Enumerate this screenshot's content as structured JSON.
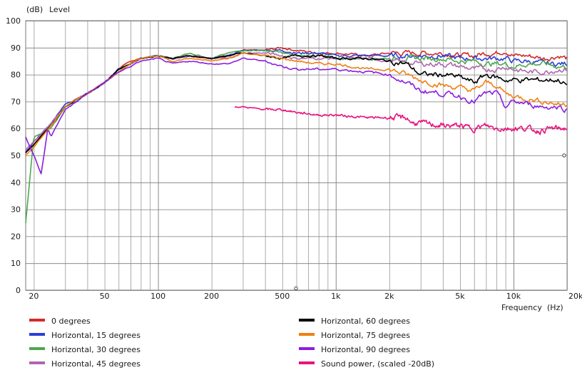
{
  "chart_data": {
    "type": "line",
    "y_unit": "(dB)",
    "ylabel": "Level",
    "xlabel": "Frequency",
    "x_unit": "(Hz)",
    "x_scale": "log",
    "xlim": [
      18,
      20000
    ],
    "ylim": [
      0,
      100
    ],
    "grid": true,
    "legend_position": "bottom",
    "y_ticks": [
      0,
      10,
      20,
      30,
      40,
      50,
      60,
      70,
      80,
      90,
      100
    ],
    "x_ticks": [
      {
        "value": 20,
        "label": "20"
      },
      {
        "value": 50,
        "label": "50"
      },
      {
        "value": 100,
        "label": "100"
      },
      {
        "value": 200,
        "label": "200"
      },
      {
        "value": 500,
        "label": "500"
      },
      {
        "value": 1000,
        "label": "1k"
      },
      {
        "value": 2000,
        "label": "2k"
      },
      {
        "value": 5000,
        "label": "5k"
      },
      {
        "value": 10000,
        "label": "10k"
      },
      {
        "value": 20000,
        "label": "20k"
      }
    ],
    "series": [
      {
        "name": "0 degrees",
        "color": "#d42a2a",
        "x": [
          18,
          20,
          25,
          30,
          35,
          40,
          50,
          60,
          70,
          80,
          100,
          120,
          150,
          200,
          250,
          300,
          400,
          500,
          600,
          800,
          1000,
          1500,
          2000,
          3000,
          4000,
          5000,
          6000,
          7000,
          8000,
          9000,
          10000,
          12000,
          15000,
          18000,
          20000
        ],
        "y": [
          51,
          54,
          62,
          68,
          71,
          73,
          77,
          82,
          85,
          86,
          87,
          86,
          87,
          86,
          87,
          89,
          89,
          90,
          89,
          88,
          88,
          87,
          88,
          88,
          88,
          87,
          87,
          88,
          88,
          89,
          87,
          87,
          86,
          87,
          86
        ]
      },
      {
        "name": "Horizontal, 15 degrees",
        "color": "#2b3fd6",
        "x": [
          18,
          20,
          25,
          30,
          35,
          40,
          50,
          60,
          70,
          80,
          100,
          120,
          150,
          200,
          250,
          300,
          400,
          500,
          600,
          800,
          1000,
          1500,
          2000,
          3000,
          4000,
          5000,
          6000,
          7000,
          8000,
          9000,
          10000,
          12000,
          15000,
          18000,
          20000
        ],
        "y": [
          51,
          55,
          62,
          69,
          71,
          73,
          77,
          82,
          84,
          86,
          87,
          86,
          87,
          86,
          87,
          89,
          89,
          89,
          88,
          88,
          87,
          87,
          87,
          87,
          87,
          86,
          86,
          86,
          86,
          86,
          85,
          85,
          84,
          84,
          84
        ]
      },
      {
        "name": "Horizontal, 30 degrees",
        "color": "#4ca84c",
        "x": [
          18,
          20,
          22,
          25,
          30,
          35,
          40,
          50,
          60,
          70,
          80,
          100,
          120,
          150,
          200,
          250,
          300,
          400,
          500,
          600,
          800,
          1000,
          1500,
          2000,
          3000,
          4000,
          5000,
          6000,
          7000,
          8000,
          9000,
          10000,
          12000,
          15000,
          18000,
          20000
        ],
        "y": [
          25,
          57,
          58,
          60,
          68,
          70,
          73,
          77,
          82,
          84,
          86,
          87,
          86,
          88,
          86,
          88,
          89,
          89,
          88,
          87,
          87,
          86,
          86,
          86,
          86,
          86,
          85,
          85,
          84,
          84,
          84,
          83,
          84,
          84,
          83,
          83
        ]
      },
      {
        "name": "Horizontal, 45 degrees",
        "color": "#b066b0",
        "x": [
          18,
          20,
          25,
          30,
          35,
          40,
          50,
          60,
          70,
          80,
          100,
          120,
          150,
          200,
          250,
          300,
          400,
          500,
          600,
          800,
          1000,
          1500,
          2000,
          3000,
          4000,
          5000,
          6000,
          7000,
          8000,
          9000,
          10000,
          12000,
          15000,
          18000,
          20000
        ],
        "y": [
          52,
          55,
          62,
          68,
          71,
          73,
          77,
          81,
          84,
          86,
          87,
          86,
          87,
          86,
          86,
          88,
          88,
          87,
          86,
          86,
          86,
          86,
          85,
          84,
          84,
          83,
          82,
          82,
          82,
          83,
          82,
          81,
          81,
          82,
          82
        ]
      },
      {
        "name": "Horizontal, 60 degrees",
        "color": "#000000",
        "x": [
          18,
          20,
          25,
          30,
          35,
          40,
          50,
          60,
          70,
          80,
          100,
          120,
          150,
          200,
          250,
          300,
          400,
          500,
          600,
          800,
          1000,
          1500,
          2000,
          2500,
          3000,
          4000,
          5000,
          6000,
          7000,
          8000,
          9000,
          10000,
          12000,
          15000,
          18000,
          20000
        ],
        "y": [
          51,
          54,
          61,
          68,
          71,
          73,
          77,
          82,
          84,
          86,
          87,
          86,
          87,
          86,
          87,
          88,
          87,
          86,
          87,
          87,
          86,
          86,
          85,
          84,
          80,
          80,
          79,
          77,
          80,
          79,
          78,
          78,
          78,
          78,
          78,
          76
        ]
      },
      {
        "name": "Horizontal, 75 degrees",
        "color": "#f07f12",
        "x": [
          18,
          20,
          25,
          30,
          35,
          40,
          50,
          60,
          70,
          80,
          100,
          120,
          150,
          200,
          250,
          300,
          400,
          500,
          600,
          800,
          1000,
          1500,
          2000,
          2500,
          3000,
          4000,
          5000,
          6000,
          7000,
          8000,
          9000,
          10000,
          12000,
          15000,
          18000,
          20000
        ],
        "y": [
          50,
          53,
          61,
          68,
          71,
          73,
          77,
          81,
          84,
          86,
          87,
          85,
          86,
          85,
          86,
          88,
          87,
          86,
          85,
          84,
          84,
          82,
          82,
          80,
          78,
          76,
          75,
          74,
          77,
          76,
          73,
          72,
          71,
          70,
          69,
          69
        ]
      },
      {
        "name": "Horizontal, 90 degrees",
        "color": "#8a1ee0",
        "x": [
          18,
          20,
          22,
          24,
          25,
          30,
          35,
          40,
          50,
          60,
          70,
          80,
          100,
          120,
          150,
          200,
          250,
          300,
          400,
          500,
          600,
          800,
          1000,
          1500,
          2000,
          2500,
          3000,
          4000,
          5000,
          6000,
          7000,
          8000,
          9000,
          10000,
          12000,
          15000,
          18000,
          20000
        ],
        "y": [
          57,
          50,
          43,
          60,
          57,
          67,
          70,
          73,
          77,
          81,
          83,
          85,
          86,
          84,
          85,
          84,
          84,
          86,
          85,
          83,
          82,
          82,
          82,
          81,
          80,
          77,
          74,
          73,
          72,
          70,
          73,
          73,
          68,
          70,
          69,
          68,
          68,
          67
        ]
      },
      {
        "name": "Sound power, (scaled -20dB)",
        "color": "#e8147e",
        "x": [
          270,
          300,
          400,
          500,
          600,
          800,
          1000,
          1500,
          2000,
          2500,
          2700,
          3000,
          4000,
          5000,
          6000,
          7000,
          8000,
          10000,
          12000,
          14000,
          16000,
          18000,
          20000
        ],
        "y": [
          68,
          68,
          67,
          67,
          66,
          65,
          65,
          64,
          64,
          64,
          62,
          62,
          61,
          61,
          60,
          61,
          60,
          60,
          60,
          59,
          60,
          60,
          60
        ]
      }
    ]
  }
}
